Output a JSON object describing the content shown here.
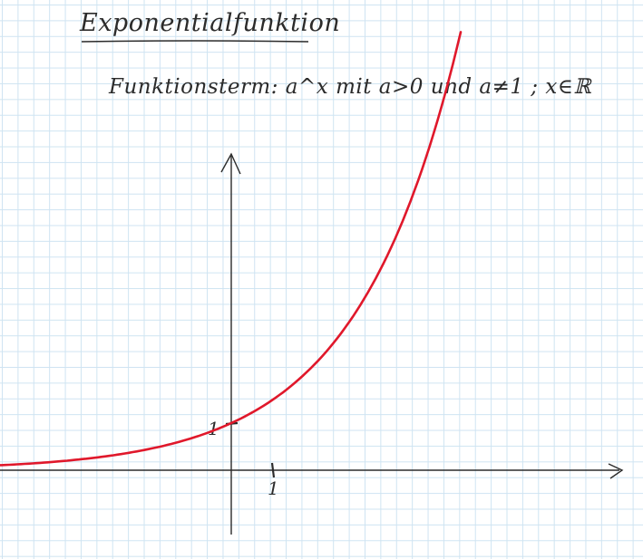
{
  "title": "Exponentialfunktion",
  "subtitle": "Funktionsterm: a^x mit a>0 und a≠1 ; x∈ℝ",
  "ticks": {
    "x_one": "1",
    "y_one": "1"
  },
  "colors": {
    "curve": "#e0182b",
    "ink": "#2b2b2b",
    "grid": "#cfe4f2"
  },
  "chart_data": {
    "type": "line",
    "function": "a^x",
    "base_estimate": 1.5,
    "x_range": [
      -5.6,
      5.5
    ],
    "point_through": [
      0,
      1
    ],
    "x_marked": 1,
    "y_marked": 1
  }
}
